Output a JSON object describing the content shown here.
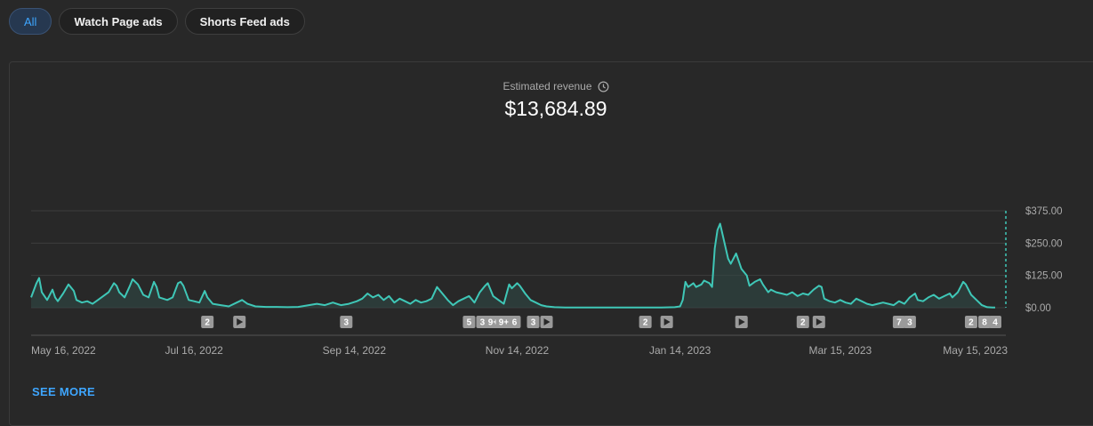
{
  "filters": [
    {
      "label": "All",
      "active": true
    },
    {
      "label": "Watch Page ads",
      "active": false
    },
    {
      "label": "Shorts Feed ads",
      "active": false
    }
  ],
  "metric": {
    "label": "Estimated revenue",
    "value": "$13,684.89",
    "icon": "clock-icon"
  },
  "see_more": "SEE MORE",
  "colors": {
    "line": "#3fc7b7",
    "fill": "#2f4a47",
    "grid": "#3d3d3d",
    "accent": "#3ea6ff"
  },
  "chart_data": {
    "type": "line",
    "title": "",
    "xlabel": "",
    "ylabel": "",
    "ylim": [
      0,
      375
    ],
    "y_ticks": [
      0,
      125,
      250,
      375
    ],
    "y_tick_labels": [
      "$0.00",
      "$125.00",
      "$250.00",
      "$375.00"
    ],
    "x_range": [
      "2022-05-16",
      "2023-05-16"
    ],
    "x_ticks": [
      {
        "date": "2022-05-16",
        "label": "May 16, 2022"
      },
      {
        "date": "2022-07-16",
        "label": "Jul 16, 2022"
      },
      {
        "date": "2022-09-14",
        "label": "Sep 14, 2022"
      },
      {
        "date": "2022-11-14",
        "label": "Nov 14, 2022"
      },
      {
        "date": "2023-01-14",
        "label": "Jan 14, 2023"
      },
      {
        "date": "2023-03-15",
        "label": "Mar 15, 2023"
      },
      {
        "date": "2023-05-15",
        "label": "May 15, 2023"
      }
    ],
    "series": [
      {
        "points": [
          [
            "2022-05-16",
            40
          ],
          [
            "2022-05-18",
            95
          ],
          [
            "2022-05-19",
            115
          ],
          [
            "2022-05-20",
            60
          ],
          [
            "2022-05-22",
            30
          ],
          [
            "2022-05-24",
            70
          ],
          [
            "2022-05-25",
            40
          ],
          [
            "2022-05-26",
            25
          ],
          [
            "2022-05-28",
            55
          ],
          [
            "2022-05-30",
            90
          ],
          [
            "2022-06-01",
            65
          ],
          [
            "2022-06-02",
            30
          ],
          [
            "2022-06-04",
            20
          ],
          [
            "2022-06-06",
            25
          ],
          [
            "2022-06-08",
            15
          ],
          [
            "2022-06-10",
            30
          ],
          [
            "2022-06-12",
            45
          ],
          [
            "2022-06-14",
            60
          ],
          [
            "2022-06-16",
            95
          ],
          [
            "2022-06-17",
            85
          ],
          [
            "2022-06-18",
            60
          ],
          [
            "2022-06-20",
            40
          ],
          [
            "2022-06-22",
            85
          ],
          [
            "2022-06-23",
            110
          ],
          [
            "2022-06-25",
            90
          ],
          [
            "2022-06-27",
            50
          ],
          [
            "2022-06-29",
            40
          ],
          [
            "2022-07-01",
            100
          ],
          [
            "2022-07-02",
            80
          ],
          [
            "2022-07-03",
            40
          ],
          [
            "2022-07-06",
            30
          ],
          [
            "2022-07-08",
            40
          ],
          [
            "2022-07-10",
            95
          ],
          [
            "2022-07-11",
            100
          ],
          [
            "2022-07-12",
            85
          ],
          [
            "2022-07-14",
            30
          ],
          [
            "2022-07-16",
            25
          ],
          [
            "2022-07-18",
            20
          ],
          [
            "2022-07-20",
            65
          ],
          [
            "2022-07-21",
            40
          ],
          [
            "2022-07-23",
            15
          ],
          [
            "2022-07-26",
            10
          ],
          [
            "2022-07-29",
            5
          ],
          [
            "2022-08-01",
            20
          ],
          [
            "2022-08-03",
            30
          ],
          [
            "2022-08-05",
            15
          ],
          [
            "2022-08-08",
            5
          ],
          [
            "2022-08-12",
            3
          ],
          [
            "2022-08-16",
            3
          ],
          [
            "2022-08-20",
            2
          ],
          [
            "2022-08-24",
            3
          ],
          [
            "2022-08-28",
            10
          ],
          [
            "2022-08-31",
            15
          ],
          [
            "2022-09-03",
            10
          ],
          [
            "2022-09-06",
            20
          ],
          [
            "2022-09-09",
            10
          ],
          [
            "2022-09-12",
            15
          ],
          [
            "2022-09-15",
            25
          ],
          [
            "2022-09-17",
            35
          ],
          [
            "2022-09-19",
            55
          ],
          [
            "2022-09-21",
            40
          ],
          [
            "2022-09-23",
            50
          ],
          [
            "2022-09-25",
            30
          ],
          [
            "2022-09-27",
            45
          ],
          [
            "2022-09-29",
            20
          ],
          [
            "2022-10-01",
            35
          ],
          [
            "2022-10-03",
            25
          ],
          [
            "2022-10-05",
            15
          ],
          [
            "2022-10-07",
            30
          ],
          [
            "2022-10-09",
            20
          ],
          [
            "2022-10-11",
            25
          ],
          [
            "2022-10-13",
            35
          ],
          [
            "2022-10-15",
            80
          ],
          [
            "2022-10-17",
            55
          ],
          [
            "2022-10-19",
            30
          ],
          [
            "2022-10-21",
            10
          ],
          [
            "2022-10-23",
            25
          ],
          [
            "2022-10-25",
            35
          ],
          [
            "2022-10-27",
            45
          ],
          [
            "2022-10-29",
            20
          ],
          [
            "2022-10-31",
            60
          ],
          [
            "2022-11-02",
            85
          ],
          [
            "2022-11-03",
            95
          ],
          [
            "2022-11-05",
            45
          ],
          [
            "2022-11-07",
            30
          ],
          [
            "2022-11-09",
            15
          ],
          [
            "2022-11-11",
            90
          ],
          [
            "2022-11-12",
            75
          ],
          [
            "2022-11-14",
            95
          ],
          [
            "2022-11-15",
            85
          ],
          [
            "2022-11-17",
            55
          ],
          [
            "2022-11-19",
            30
          ],
          [
            "2022-11-21",
            20
          ],
          [
            "2022-11-23",
            10
          ],
          [
            "2022-11-25",
            5
          ],
          [
            "2022-11-28",
            2
          ],
          [
            "2022-12-02",
            1
          ],
          [
            "2022-12-08",
            1
          ],
          [
            "2022-12-14",
            1
          ],
          [
            "2022-12-20",
            1
          ],
          [
            "2022-12-26",
            1
          ],
          [
            "2023-01-01",
            1
          ],
          [
            "2023-01-07",
            1
          ],
          [
            "2023-01-12",
            2
          ],
          [
            "2023-01-14",
            5
          ],
          [
            "2023-01-15",
            30
          ],
          [
            "2023-01-16",
            100
          ],
          [
            "2023-01-17",
            80
          ],
          [
            "2023-01-19",
            95
          ],
          [
            "2023-01-20",
            80
          ],
          [
            "2023-01-22",
            90
          ],
          [
            "2023-01-23",
            105
          ],
          [
            "2023-01-25",
            95
          ],
          [
            "2023-01-26",
            80
          ],
          [
            "2023-01-27",
            230
          ],
          [
            "2023-01-28",
            300
          ],
          [
            "2023-01-29",
            325
          ],
          [
            "2023-01-30",
            280
          ],
          [
            "2023-02-01",
            190
          ],
          [
            "2023-02-02",
            170
          ],
          [
            "2023-02-04",
            210
          ],
          [
            "2023-02-05",
            180
          ],
          [
            "2023-02-06",
            150
          ],
          [
            "2023-02-08",
            125
          ],
          [
            "2023-02-09",
            85
          ],
          [
            "2023-02-11",
            100
          ],
          [
            "2023-02-13",
            110
          ],
          [
            "2023-02-14",
            90
          ],
          [
            "2023-02-16",
            60
          ],
          [
            "2023-02-17",
            70
          ],
          [
            "2023-02-19",
            60
          ],
          [
            "2023-02-21",
            55
          ],
          [
            "2023-02-23",
            50
          ],
          [
            "2023-02-25",
            60
          ],
          [
            "2023-02-27",
            45
          ],
          [
            "2023-03-01",
            55
          ],
          [
            "2023-03-03",
            50
          ],
          [
            "2023-03-05",
            70
          ],
          [
            "2023-03-07",
            85
          ],
          [
            "2023-03-08",
            80
          ],
          [
            "2023-03-09",
            35
          ],
          [
            "2023-03-11",
            25
          ],
          [
            "2023-03-13",
            20
          ],
          [
            "2023-03-15",
            30
          ],
          [
            "2023-03-17",
            20
          ],
          [
            "2023-03-19",
            15
          ],
          [
            "2023-03-21",
            35
          ],
          [
            "2023-03-23",
            25
          ],
          [
            "2023-03-25",
            15
          ],
          [
            "2023-03-27",
            10
          ],
          [
            "2023-03-29",
            15
          ],
          [
            "2023-03-31",
            20
          ],
          [
            "2023-04-02",
            15
          ],
          [
            "2023-04-04",
            10
          ],
          [
            "2023-04-06",
            25
          ],
          [
            "2023-04-08",
            15
          ],
          [
            "2023-04-10",
            40
          ],
          [
            "2023-04-12",
            55
          ],
          [
            "2023-04-13",
            30
          ],
          [
            "2023-04-15",
            25
          ],
          [
            "2023-04-17",
            40
          ],
          [
            "2023-04-19",
            50
          ],
          [
            "2023-04-21",
            35
          ],
          [
            "2023-04-23",
            45
          ],
          [
            "2023-04-25",
            55
          ],
          [
            "2023-04-26",
            40
          ],
          [
            "2023-04-28",
            60
          ],
          [
            "2023-04-30",
            100
          ],
          [
            "2023-05-01",
            90
          ],
          [
            "2023-05-03",
            50
          ],
          [
            "2023-05-05",
            30
          ],
          [
            "2023-05-07",
            10
          ],
          [
            "2023-05-09",
            2
          ],
          [
            "2023-05-11",
            1
          ],
          [
            "2023-05-12",
            1
          ]
        ]
      }
    ],
    "markers": [
      {
        "date": "2022-07-21",
        "label": "2"
      },
      {
        "date": "2022-08-02",
        "label": "play"
      },
      {
        "date": "2022-09-11",
        "label": "3"
      },
      {
        "date": "2022-10-27",
        "label": "5"
      },
      {
        "date": "2022-11-01",
        "label": "3"
      },
      {
        "date": "2022-11-05",
        "label": "9+"
      },
      {
        "date": "2022-11-09",
        "label": "9+"
      },
      {
        "date": "2022-11-13",
        "label": "6"
      },
      {
        "date": "2022-11-20",
        "label": "3"
      },
      {
        "date": "2022-11-25",
        "label": "play"
      },
      {
        "date": "2023-01-01",
        "label": "2"
      },
      {
        "date": "2023-01-09",
        "label": "play"
      },
      {
        "date": "2023-02-06",
        "label": "play"
      },
      {
        "date": "2023-03-01",
        "label": "2"
      },
      {
        "date": "2023-03-07",
        "label": "play"
      },
      {
        "date": "2023-04-06",
        "label": "7"
      },
      {
        "date": "2023-04-10",
        "label": "3"
      },
      {
        "date": "2023-05-03",
        "label": "2"
      },
      {
        "date": "2023-05-08",
        "label": "8"
      },
      {
        "date": "2023-05-12",
        "label": "4"
      }
    ]
  }
}
